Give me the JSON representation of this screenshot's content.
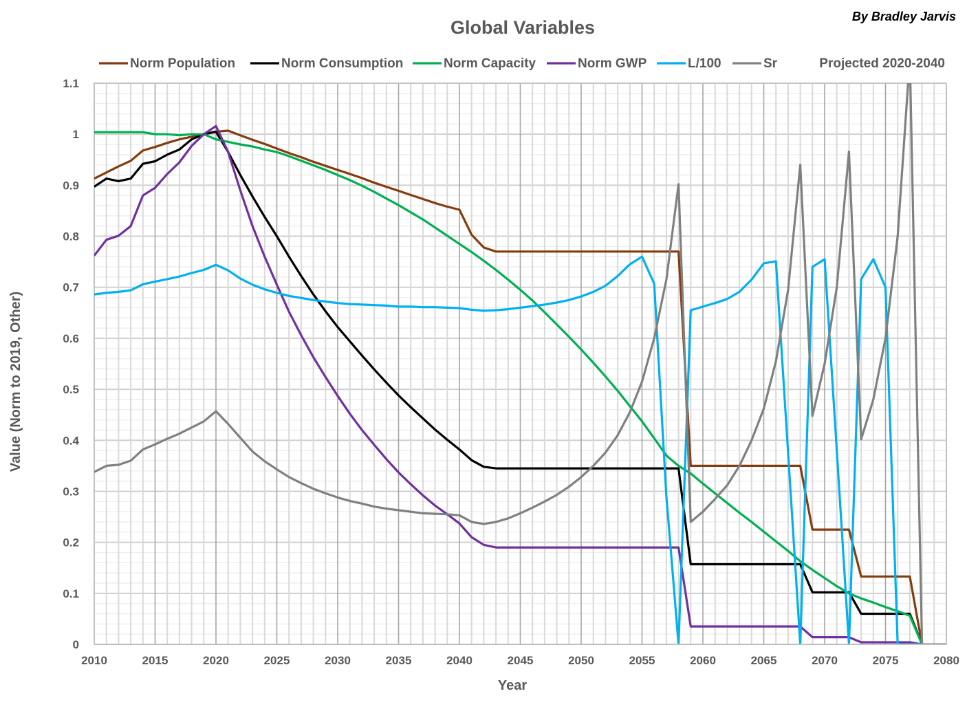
{
  "chart_data": {
    "type": "line",
    "title": "Global Variables",
    "author": "By Bradley Jarvis",
    "note": "Projected 2020-2040",
    "xlabel": "Year",
    "ylabel": "Value (Norm to 2019, Other)",
    "xlim": [
      2010,
      2080
    ],
    "ylim": [
      0,
      1.1
    ],
    "xticks": [
      "2010",
      "2015",
      "2020",
      "2025",
      "2030",
      "2035",
      "2040",
      "2045",
      "2050",
      "2055",
      "2060",
      "2065",
      "2070",
      "2075",
      "2080"
    ],
    "yticks": [
      "0",
      "0.1",
      "0.2",
      "0.3",
      "0.4",
      "0.5",
      "0.6",
      "0.7",
      "0.8",
      "0.9",
      "1",
      "1.1"
    ],
    "grid": true,
    "legend_position": "top",
    "x": [
      2010,
      2011,
      2012,
      2013,
      2014,
      2015,
      2016,
      2017,
      2018,
      2019,
      2020,
      2021,
      2022,
      2023,
      2024,
      2025,
      2026,
      2027,
      2028,
      2029,
      2030,
      2031,
      2032,
      2033,
      2034,
      2035,
      2036,
      2037,
      2038,
      2039,
      2040,
      2041,
      2042,
      2043,
      2044,
      2045,
      2046,
      2047,
      2048,
      2049,
      2050,
      2051,
      2052,
      2053,
      2054,
      2055,
      2056,
      2057,
      2058,
      2059,
      2060,
      2061,
      2062,
      2063,
      2064,
      2065,
      2066,
      2067,
      2068,
      2069,
      2070,
      2071,
      2072,
      2073,
      2074,
      2075,
      2076,
      2077,
      2078,
      2079,
      2080
    ],
    "series": [
      {
        "name": "Norm Population",
        "color": "#843c0c",
        "values": [
          0.913,
          0.925,
          0.937,
          0.948,
          0.968,
          0.975,
          0.983,
          0.99,
          0.995,
          1.0,
          1.005,
          1.007,
          0.998,
          0.989,
          0.981,
          0.972,
          0.963,
          0.955,
          0.946,
          0.938,
          0.93,
          0.922,
          0.914,
          0.905,
          0.897,
          0.889,
          0.881,
          0.873,
          0.865,
          0.858,
          0.852,
          0.803,
          0.778,
          0.77,
          0.77,
          0.77,
          0.77,
          0.77,
          0.77,
          0.77,
          0.77,
          0.77,
          0.77,
          0.77,
          0.77,
          0.77,
          0.77,
          0.77,
          0.77,
          0.35,
          0.35,
          0.35,
          0.35,
          0.35,
          0.35,
          0.35,
          0.35,
          0.35,
          0.35,
          0.225,
          0.225,
          0.225,
          0.225,
          0.133,
          0.133,
          0.133,
          0.133,
          0.133,
          0,
          null,
          null
        ]
      },
      {
        "name": "Norm Consumption",
        "color": "#000000",
        "values": [
          0.897,
          0.913,
          0.908,
          0.913,
          0.942,
          0.947,
          0.96,
          0.97,
          0.99,
          1.0,
          1.005,
          0.965,
          0.92,
          0.878,
          0.838,
          0.8,
          0.76,
          0.722,
          0.686,
          0.653,
          0.622,
          0.594,
          0.566,
          0.539,
          0.513,
          0.488,
          0.465,
          0.443,
          0.421,
          0.401,
          0.382,
          0.361,
          0.348,
          0.345,
          0.345,
          0.345,
          0.345,
          0.345,
          0.345,
          0.345,
          0.345,
          0.345,
          0.345,
          0.345,
          0.345,
          0.345,
          0.345,
          0.345,
          0.345,
          0.157,
          0.157,
          0.157,
          0.157,
          0.157,
          0.157,
          0.157,
          0.157,
          0.157,
          0.157,
          0.102,
          0.102,
          0.102,
          0.102,
          0.06,
          0.06,
          0.06,
          0.06,
          0.06,
          0,
          null,
          null
        ]
      },
      {
        "name": "Norm Capacity",
        "color": "#00b050",
        "values": [
          1.004,
          1.004,
          1.004,
          1.004,
          1.004,
          1.0,
          1.0,
          0.998,
          1.0,
          1.0,
          0.99,
          0.985,
          0.98,
          0.976,
          0.97,
          0.965,
          0.957,
          0.948,
          0.939,
          0.93,
          0.92,
          0.91,
          0.899,
          0.887,
          0.874,
          0.861,
          0.847,
          0.833,
          0.817,
          0.801,
          0.785,
          0.769,
          0.752,
          0.734,
          0.715,
          0.695,
          0.674,
          0.651,
          0.627,
          0.603,
          0.578,
          0.552,
          0.525,
          0.497,
          0.467,
          0.437,
          0.404,
          0.37,
          0.35,
          0.335,
          0.315,
          0.296,
          0.277,
          0.258,
          0.24,
          0.221,
          0.202,
          0.183,
          0.163,
          0.146,
          0.13,
          0.114,
          0.1,
          0.09,
          0.082,
          0.073,
          0.065,
          0.056,
          0,
          null,
          null
        ]
      },
      {
        "name": "Norm GWP",
        "color": "#7030a0",
        "values": [
          0.762,
          0.793,
          0.801,
          0.82,
          0.88,
          0.895,
          0.922,
          0.945,
          0.977,
          1.0,
          1.016,
          0.965,
          0.89,
          0.82,
          0.76,
          0.705,
          0.652,
          0.606,
          0.563,
          0.524,
          0.487,
          0.452,
          0.42,
          0.391,
          0.363,
          0.337,
          0.314,
          0.292,
          0.272,
          0.255,
          0.237,
          0.21,
          0.195,
          0.19,
          0.19,
          0.19,
          0.19,
          0.19,
          0.19,
          0.19,
          0.19,
          0.19,
          0.19,
          0.19,
          0.19,
          0.19,
          0.19,
          0.19,
          0.19,
          0.035,
          0.035,
          0.035,
          0.035,
          0.035,
          0.035,
          0.035,
          0.035,
          0.035,
          0.035,
          0.014,
          0.014,
          0.014,
          0.014,
          0.004,
          0.004,
          0.004,
          0.004,
          0.004,
          0,
          null,
          null
        ]
      },
      {
        "name": "L/100",
        "color": "#00b0f0",
        "values": [
          0.686,
          0.689,
          0.691,
          0.694,
          0.706,
          0.711,
          0.716,
          0.721,
          0.728,
          0.734,
          0.744,
          0.733,
          0.717,
          0.705,
          0.696,
          0.689,
          0.683,
          0.679,
          0.675,
          0.672,
          0.669,
          0.667,
          0.666,
          0.665,
          0.664,
          0.662,
          0.662,
          0.661,
          0.661,
          0.66,
          0.659,
          0.656,
          0.654,
          0.655,
          0.657,
          0.66,
          0.663,
          0.666,
          0.67,
          0.675,
          0.682,
          0.691,
          0.703,
          0.722,
          0.745,
          0.76,
          0.707,
          0.29,
          0,
          0.655,
          0.662,
          0.669,
          0.677,
          0.691,
          0.715,
          0.747,
          0.751,
          0.375,
          0,
          0.74,
          0.755,
          0.38,
          0,
          0.716,
          0.755,
          0.7,
          0,
          0,
          0,
          null,
          null
        ]
      },
      {
        "name": "Sr",
        "color": "#808080",
        "values": [
          0.338,
          0.35,
          0.352,
          0.36,
          0.382,
          0.392,
          0.403,
          0.413,
          0.425,
          0.437,
          0.457,
          0.432,
          0.405,
          0.378,
          0.359,
          0.343,
          0.328,
          0.316,
          0.305,
          0.296,
          0.288,
          0.281,
          0.276,
          0.27,
          0.266,
          0.263,
          0.26,
          0.257,
          0.256,
          0.255,
          0.253,
          0.24,
          0.236,
          0.24,
          0.247,
          0.257,
          0.268,
          0.28,
          0.293,
          0.309,
          0.328,
          0.35,
          0.376,
          0.41,
          0.455,
          0.515,
          0.6,
          0.715,
          0.902,
          0.24,
          0.26,
          0.285,
          0.312,
          0.35,
          0.4,
          0.462,
          0.555,
          0.695,
          0.94,
          0.448,
          0.55,
          0.7,
          0.966,
          0.402,
          0.48,
          0.6,
          0.8,
          1.15,
          0,
          0,
          0
        ]
      }
    ]
  }
}
